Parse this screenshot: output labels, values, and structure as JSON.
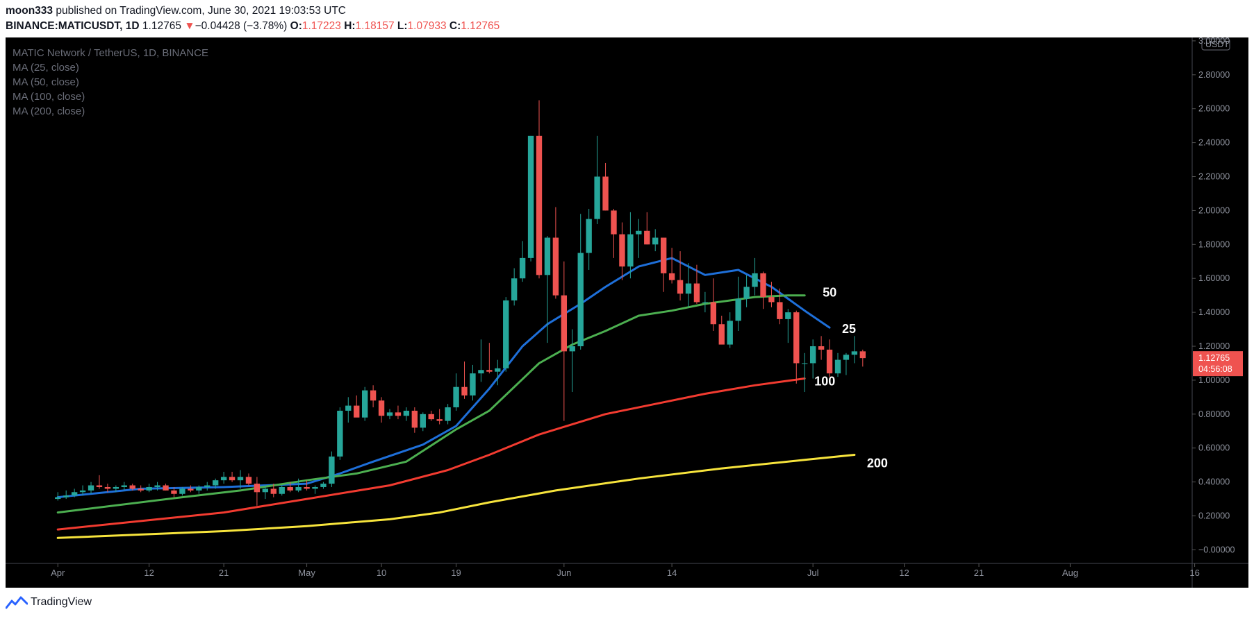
{
  "header": {
    "author": "moon333",
    "published_text": "published on TradingView.com, June 30, 2021 19:03:53 UTC",
    "symbol": "BINANCE:MATICUSDT, 1D",
    "last_price": "1.12765",
    "change_arrow": "▼",
    "change": "−0.04428 (−3.78%)",
    "o_label": "O:",
    "o_value": "1.17223",
    "h_label": "H:",
    "h_value": "1.18157",
    "l_label": "L:",
    "l_value": "1.07933",
    "c_label": "C:",
    "c_value": "1.12765"
  },
  "footer": {
    "brand": "TradingView"
  },
  "colors": {
    "up": "#26a69a",
    "down": "#ef5350",
    "ma25": "#1e6fd9",
    "ma50": "#4caf50",
    "ma100": "#f23b30",
    "ma200": "#f7e43c"
  },
  "chart_data": {
    "type": "candlestick",
    "title": "MATIC Network / TetherUS, 1D, BINANCE",
    "legend": [
      "MA (25, close)",
      "MA (50, close)",
      "MA (100, close)",
      "MA (200, close)"
    ],
    "currency_label": "USDT",
    "ylim": [
      -0.08,
      3.02
    ],
    "y_ticks": [
      3.0,
      2.8,
      2.6,
      2.4,
      2.2,
      2.0,
      1.8,
      1.6,
      1.4,
      1.2,
      1.0,
      0.8,
      0.6,
      0.4,
      0.2,
      0.0
    ],
    "y_tick_labels": [
      "3.00000",
      "2.80000",
      "2.60000",
      "2.40000",
      "2.20000",
      "2.00000",
      "1.80000",
      "1.60000",
      "1.40000",
      "1.20000",
      "1.00000",
      "0.80000",
      "0.60000",
      "0.40000",
      "0.20000",
      "−0.00000"
    ],
    "x_range_days": [
      -6.3,
      136.7
    ],
    "x_ticks": [
      {
        "day": 0,
        "label": "Apr"
      },
      {
        "day": 11,
        "label": "12"
      },
      {
        "day": 20,
        "label": "21"
      },
      {
        "day": 30,
        "label": "May"
      },
      {
        "day": 39,
        "label": "10"
      },
      {
        "day": 48,
        "label": "19"
      },
      {
        "day": 61,
        "label": "Jun"
      },
      {
        "day": 74,
        "label": "14"
      },
      {
        "day": 91,
        "label": "Jul"
      },
      {
        "day": 102,
        "label": "12"
      },
      {
        "day": 111,
        "label": "21"
      },
      {
        "day": 122,
        "label": "Aug"
      },
      {
        "day": 137,
        "label": "16"
      }
    ],
    "last_price_label": "1.12765",
    "countdown_label": "04:56:08",
    "start_date": "2021-03-26",
    "candles_ohlc": [
      [
        0.3,
        0.34,
        0.29,
        0.31
      ],
      [
        0.31,
        0.35,
        0.3,
        0.32
      ],
      [
        0.32,
        0.36,
        0.31,
        0.34
      ],
      [
        0.34,
        0.38,
        0.32,
        0.35
      ],
      [
        0.35,
        0.4,
        0.33,
        0.38
      ],
      [
        0.38,
        0.44,
        0.36,
        0.37
      ],
      [
        0.37,
        0.39,
        0.34,
        0.36
      ],
      [
        0.36,
        0.38,
        0.34,
        0.37
      ],
      [
        0.37,
        0.4,
        0.35,
        0.38
      ],
      [
        0.38,
        0.39,
        0.35,
        0.36
      ],
      [
        0.36,
        0.38,
        0.34,
        0.35
      ],
      [
        0.35,
        0.39,
        0.34,
        0.37
      ],
      [
        0.37,
        0.4,
        0.35,
        0.38
      ],
      [
        0.38,
        0.39,
        0.35,
        0.35
      ],
      [
        0.35,
        0.37,
        0.31,
        0.33
      ],
      [
        0.33,
        0.37,
        0.32,
        0.36
      ],
      [
        0.36,
        0.38,
        0.34,
        0.35
      ],
      [
        0.35,
        0.38,
        0.33,
        0.37
      ],
      [
        0.37,
        0.4,
        0.35,
        0.38
      ],
      [
        0.38,
        0.42,
        0.36,
        0.41
      ],
      [
        0.41,
        0.46,
        0.39,
        0.43
      ],
      [
        0.43,
        0.46,
        0.4,
        0.41
      ],
      [
        0.41,
        0.47,
        0.36,
        0.43
      ],
      [
        0.43,
        0.45,
        0.38,
        0.39
      ],
      [
        0.39,
        0.43,
        0.26,
        0.34
      ],
      [
        0.34,
        0.38,
        0.3,
        0.36
      ],
      [
        0.36,
        0.39,
        0.31,
        0.33
      ],
      [
        0.33,
        0.38,
        0.32,
        0.37
      ],
      [
        0.37,
        0.4,
        0.34,
        0.35
      ],
      [
        0.35,
        0.42,
        0.34,
        0.37
      ],
      [
        0.37,
        0.41,
        0.35,
        0.36
      ],
      [
        0.36,
        0.38,
        0.33,
        0.37
      ],
      [
        0.37,
        0.4,
        0.36,
        0.39
      ],
      [
        0.39,
        0.58,
        0.37,
        0.55
      ],
      [
        0.55,
        0.84,
        0.53,
        0.82
      ],
      [
        0.82,
        0.9,
        0.75,
        0.85
      ],
      [
        0.85,
        0.91,
        0.79,
        0.78
      ],
      [
        0.78,
        0.96,
        0.76,
        0.94
      ],
      [
        0.94,
        0.97,
        0.84,
        0.88
      ],
      [
        0.88,
        0.9,
        0.75,
        0.79
      ],
      [
        0.79,
        0.83,
        0.77,
        0.81
      ],
      [
        0.81,
        0.85,
        0.77,
        0.79
      ],
      [
        0.79,
        0.84,
        0.76,
        0.82
      ],
      [
        0.82,
        0.84,
        0.69,
        0.72
      ],
      [
        0.72,
        0.81,
        0.7,
        0.8
      ],
      [
        0.8,
        0.82,
        0.76,
        0.77
      ],
      [
        0.77,
        0.83,
        0.74,
        0.76
      ],
      [
        0.76,
        0.86,
        0.74,
        0.84
      ],
      [
        0.84,
        1.04,
        0.82,
        0.96
      ],
      [
        0.96,
        1.11,
        0.89,
        0.91
      ],
      [
        0.91,
        1.09,
        0.88,
        1.04
      ],
      [
        1.04,
        1.24,
        0.99,
        1.06
      ],
      [
        1.06,
        1.22,
        1.04,
        1.05
      ],
      [
        1.05,
        1.12,
        0.97,
        1.07
      ],
      [
        1.07,
        1.49,
        1.05,
        1.47
      ],
      [
        1.47,
        1.66,
        1.44,
        1.6
      ],
      [
        1.6,
        1.82,
        1.58,
        1.72
      ],
      [
        1.72,
        2.44,
        1.7,
        2.44
      ],
      [
        2.44,
        2.65,
        1.6,
        1.62
      ],
      [
        1.62,
        1.85,
        1.22,
        1.84
      ],
      [
        1.84,
        2.02,
        1.48,
        1.5
      ],
      [
        1.5,
        1.7,
        0.76,
        1.17
      ],
      [
        1.17,
        1.3,
        0.93,
        1.2
      ],
      [
        1.2,
        1.98,
        1.18,
        1.75
      ],
      [
        1.75,
        2.01,
        1.65,
        1.95
      ],
      [
        1.95,
        2.44,
        1.92,
        2.2
      ],
      [
        2.2,
        2.28,
        2.0,
        2.0
      ],
      [
        2.0,
        2.01,
        1.72,
        1.86
      ],
      [
        1.86,
        1.93,
        1.59,
        1.67
      ],
      [
        1.67,
        1.99,
        1.6,
        1.86
      ],
      [
        1.86,
        1.95,
        1.72,
        1.88
      ],
      [
        1.88,
        1.99,
        1.8,
        1.8
      ],
      [
        1.8,
        1.89,
        1.76,
        1.84
      ],
      [
        1.84,
        1.84,
        1.52,
        1.63
      ],
      [
        1.63,
        1.78,
        1.57,
        1.59
      ],
      [
        1.59,
        1.76,
        1.47,
        1.51
      ],
      [
        1.51,
        1.69,
        1.43,
        1.57
      ],
      [
        1.57,
        1.68,
        1.45,
        1.46
      ],
      [
        1.46,
        1.52,
        1.4,
        1.46
      ],
      [
        1.46,
        1.6,
        1.29,
        1.33
      ],
      [
        1.33,
        1.38,
        1.23,
        1.21
      ],
      [
        1.21,
        1.4,
        1.19,
        1.35
      ],
      [
        1.35,
        1.61,
        1.29,
        1.48
      ],
      [
        1.48,
        1.62,
        1.43,
        1.55
      ],
      [
        1.55,
        1.72,
        1.5,
        1.63
      ],
      [
        1.63,
        1.64,
        1.42,
        1.49
      ],
      [
        1.49,
        1.58,
        1.43,
        1.46
      ],
      [
        1.46,
        1.54,
        1.33,
        1.36
      ],
      [
        1.36,
        1.42,
        1.22,
        1.4
      ],
      [
        1.4,
        1.41,
        0.98,
        1.1
      ],
      [
        1.1,
        1.16,
        0.93,
        1.1
      ],
      [
        1.1,
        1.24,
        1.01,
        1.2
      ],
      [
        1.2,
        1.26,
        1.12,
        1.18
      ],
      [
        1.18,
        1.24,
        1.02,
        1.04
      ],
      [
        1.04,
        1.16,
        1.02,
        1.12
      ],
      [
        1.12,
        1.16,
        1.03,
        1.15
      ],
      [
        1.15,
        1.26,
        1.1,
        1.17
      ],
      [
        1.17,
        1.18,
        1.08,
        1.13
      ]
    ],
    "series": [
      {
        "name": "MA 25",
        "label": "25",
        "points": [
          [
            0,
            0.31
          ],
          [
            10,
            0.36
          ],
          [
            20,
            0.37
          ],
          [
            30,
            0.39
          ],
          [
            34,
            0.45
          ],
          [
            38,
            0.52
          ],
          [
            44,
            0.62
          ],
          [
            48,
            0.73
          ],
          [
            52,
            0.95
          ],
          [
            56,
            1.2
          ],
          [
            59,
            1.33
          ],
          [
            63,
            1.45
          ],
          [
            66,
            1.55
          ],
          [
            70,
            1.67
          ],
          [
            74,
            1.72
          ],
          [
            78,
            1.62
          ],
          [
            82,
            1.65
          ],
          [
            86,
            1.55
          ],
          [
            90,
            1.41
          ],
          [
            93,
            1.31
          ]
        ]
      },
      {
        "name": "MA 50",
        "label": "50",
        "points": [
          [
            0,
            0.22
          ],
          [
            15,
            0.31
          ],
          [
            22,
            0.35
          ],
          [
            30,
            0.41
          ],
          [
            36,
            0.45
          ],
          [
            42,
            0.52
          ],
          [
            48,
            0.71
          ],
          [
            52,
            0.82
          ],
          [
            58,
            1.1
          ],
          [
            62,
            1.21
          ],
          [
            66,
            1.29
          ],
          [
            70,
            1.38
          ],
          [
            74,
            1.41
          ],
          [
            78,
            1.45
          ],
          [
            84,
            1.49
          ],
          [
            88,
            1.5
          ],
          [
            90,
            1.5
          ]
        ]
      },
      {
        "name": "MA 100",
        "label": "100",
        "points": [
          [
            0,
            0.12
          ],
          [
            10,
            0.17
          ],
          [
            20,
            0.22
          ],
          [
            30,
            0.3
          ],
          [
            40,
            0.38
          ],
          [
            47,
            0.47
          ],
          [
            52,
            0.56
          ],
          [
            58,
            0.68
          ],
          [
            66,
            0.8
          ],
          [
            72,
            0.86
          ],
          [
            78,
            0.92
          ],
          [
            84,
            0.97
          ],
          [
            90,
            1.01
          ]
        ]
      },
      {
        "name": "MA 200",
        "label": "200",
        "points": [
          [
            0,
            0.07
          ],
          [
            10,
            0.09
          ],
          [
            20,
            0.11
          ],
          [
            30,
            0.14
          ],
          [
            40,
            0.18
          ],
          [
            46,
            0.22
          ],
          [
            52,
            0.28
          ],
          [
            60,
            0.35
          ],
          [
            70,
            0.42
          ],
          [
            80,
            0.48
          ],
          [
            90,
            0.53
          ],
          [
            96,
            0.56
          ]
        ]
      }
    ]
  }
}
